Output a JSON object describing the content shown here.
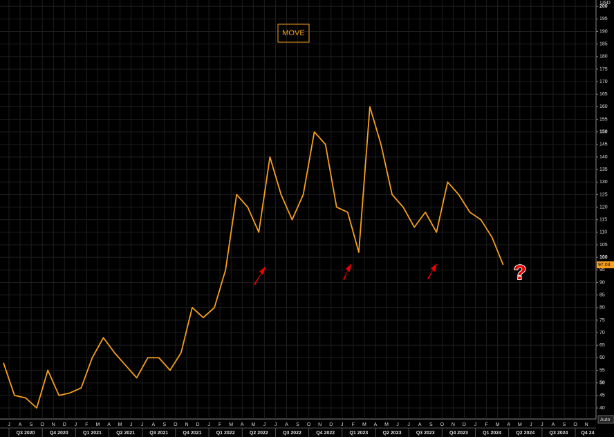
{
  "chart_data": {
    "type": "line",
    "title": "MOVE",
    "y_axis_label": "USD",
    "annotation": "?",
    "auto_label": "Auto",
    "x": [
      "2020-06",
      "2020-07",
      "2020-08",
      "2020-09",
      "2020-10",
      "2020-11",
      "2020-12",
      "2021-01",
      "2021-02",
      "2021-03",
      "2021-04",
      "2021-05",
      "2021-06",
      "2021-07",
      "2021-08",
      "2021-09",
      "2021-10",
      "2021-11",
      "2021-12",
      "2022-01",
      "2022-02",
      "2022-03",
      "2022-04",
      "2022-05",
      "2022-06",
      "2022-07",
      "2022-08",
      "2022-09",
      "2022-10",
      "2022-11",
      "2022-12",
      "2023-01",
      "2023-02",
      "2023-03",
      "2023-04",
      "2023-05",
      "2023-06",
      "2023-07",
      "2023-08",
      "2023-09",
      "2023-10",
      "2023-11",
      "2023-12",
      "2024-01",
      "2024-02",
      "2024-03"
    ],
    "series": [
      {
        "name": "MOVE",
        "color": "#f7a01c",
        "values": [
          58,
          45,
          44,
          40,
          55,
          45,
          46,
          48,
          60,
          68,
          62,
          57,
          52,
          60,
          60,
          55,
          62,
          80,
          76,
          80,
          95,
          125,
          120,
          110,
          140,
          125,
          115,
          125,
          150,
          145,
          120,
          118,
          102,
          160,
          145,
          125,
          120,
          112,
          118,
          110,
          130,
          125,
          118,
          115,
          108,
          97.03
        ]
      }
    ],
    "ylim": [
      37,
      201
    ],
    "yticks": [
      40,
      45,
      50,
      55,
      60,
      65,
      70,
      75,
      80,
      85,
      90,
      95,
      100,
      105,
      110,
      115,
      120,
      125,
      130,
      135,
      140,
      145,
      150,
      155,
      160,
      165,
      170,
      175,
      180,
      185,
      190,
      195,
      200
    ],
    "month_labels": [
      "J",
      "A",
      "S",
      "O",
      "N",
      "D",
      "J",
      "F",
      "M",
      "A",
      "M",
      "J",
      "J",
      "A",
      "S",
      "O",
      "N",
      "D",
      "J",
      "F",
      "M",
      "A",
      "M",
      "J",
      "J",
      "A",
      "S",
      "O",
      "N",
      "D",
      "J",
      "F",
      "M",
      "A",
      "M",
      "J",
      "J",
      "A",
      "S",
      "O",
      "N",
      "D",
      "J",
      "F",
      "M",
      "A",
      "M",
      "J",
      "J",
      "A",
      "S",
      "O",
      "N"
    ],
    "quarter_labels": [
      "Q3 2020",
      "Q4 2020",
      "Q1 2021",
      "Q2 2021",
      "Q3 2021",
      "Q4 2021",
      "Q1 2022",
      "Q2 2022",
      "Q3 2022",
      "Q4 2022",
      "Q1 2023",
      "Q2 2023",
      "Q3 2023",
      "Q4 2023",
      "Q1 2024",
      "Q2 2024",
      "Q3 2024",
      "Q4 24"
    ],
    "grid": true
  }
}
